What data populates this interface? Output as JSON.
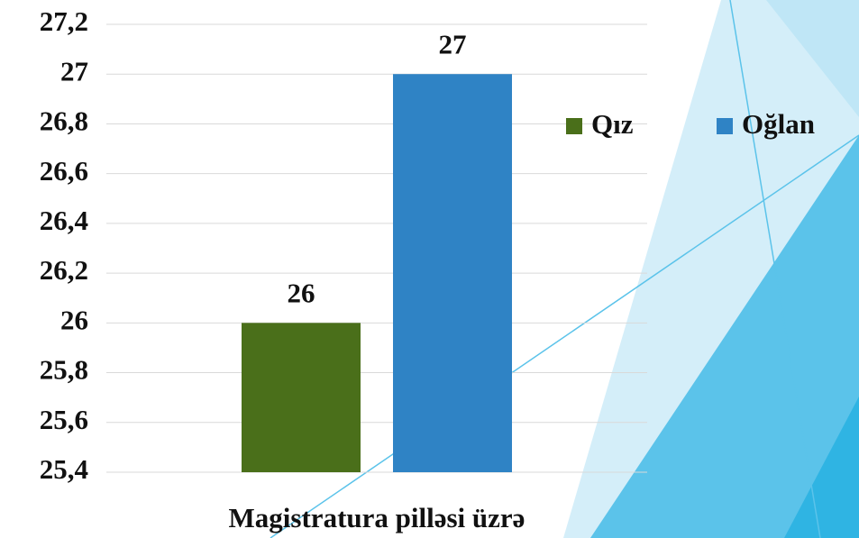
{
  "chart_data": {
    "type": "bar",
    "categories": [
      "Magistratura pilləsi üzrə"
    ],
    "series": [
      {
        "name": "Qız",
        "color": "#4a6f1a",
        "values": [
          26
        ]
      },
      {
        "name": "Oğlan",
        "color": "#2f83c5",
        "values": [
          27
        ]
      }
    ],
    "ylim": [
      25.4,
      27.2
    ],
    "yticks": [
      {
        "value": 25.4,
        "label": "25,4"
      },
      {
        "value": 25.6,
        "label": "25,6"
      },
      {
        "value": 25.8,
        "label": "25,8"
      },
      26,
      {
        "value": 26.2,
        "label": "26,2"
      },
      {
        "value": 26.4,
        "label": "26,4"
      },
      {
        "value": 26.6,
        "label": "26,6"
      },
      {
        "value": 26.8,
        "label": "26,8"
      },
      27,
      {
        "value": 27.2,
        "label": "27,2"
      }
    ],
    "grid": true,
    "legend": "right"
  }
}
